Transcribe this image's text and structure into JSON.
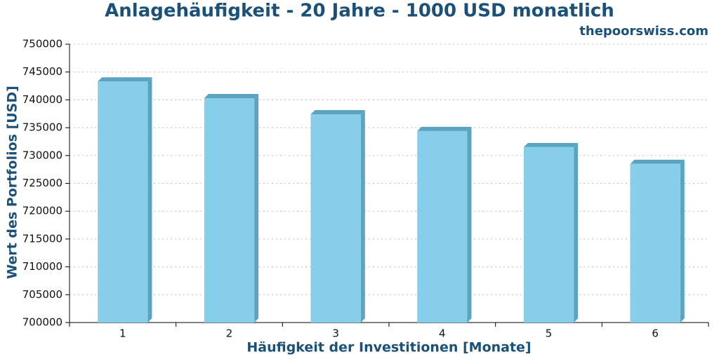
{
  "chart_data": {
    "type": "bar",
    "title": "Anlagehäufigkeit - 20 Jahre - 1000 USD monatlich",
    "subtitle": "thepoorswiss.com",
    "x_label": "Häufigkeit der Investitionen [Monate]",
    "y_label": "Wert des Portfolios [USD]",
    "categories": [
      "1",
      "2",
      "3",
      "4",
      "5",
      "6"
    ],
    "values": [
      743300,
      740300,
      737400,
      734400,
      731500,
      728500
    ],
    "color": "#87ceeb",
    "shade_color": "#5aa4c2",
    "ylim": [
      700000,
      750000
    ],
    "yticks": [
      700000,
      705000,
      710000,
      715000,
      720000,
      725000,
      730000,
      735000,
      740000,
      745000,
      750000
    ],
    "grid": true
  }
}
